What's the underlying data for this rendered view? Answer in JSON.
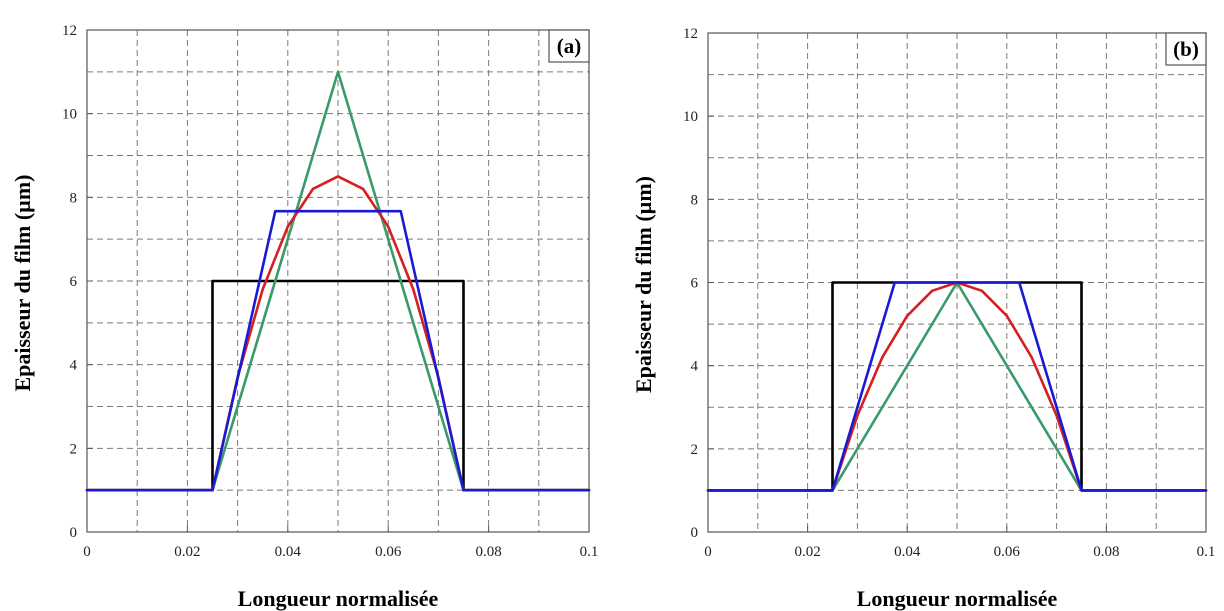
{
  "chart_data": [
    {
      "type": "line",
      "panel_label": "(a)",
      "xlabel": "Longueur normalisée",
      "ylabel": "Epaisseur du film (µm)",
      "xlim": [
        0,
        0.1
      ],
      "ylim": [
        0,
        12
      ],
      "xticks": [
        "0",
        "0.02",
        "0.04",
        "0.06",
        "0.08",
        "0.1"
      ],
      "yticks": [
        "0",
        "2",
        "4",
        "6",
        "8",
        "10",
        "12"
      ],
      "grid": true,
      "series": [
        {
          "color": "#000000",
          "x": [
            0,
            0.025,
            0.025,
            0.075,
            0.075,
            0.1
          ],
          "y": [
            1,
            1,
            6,
            6,
            1,
            1
          ]
        },
        {
          "color": "#3a9a6a",
          "x": [
            0,
            0.025,
            0.05,
            0.075,
            0.1
          ],
          "y": [
            1,
            1,
            11,
            1,
            1
          ]
        },
        {
          "color": "#d42020",
          "x": [
            0,
            0.025,
            0.03,
            0.035,
            0.04,
            0.045,
            0.05,
            0.055,
            0.06,
            0.065,
            0.07,
            0.075,
            0.1
          ],
          "y": [
            1,
            1,
            3.7,
            5.8,
            7.3,
            8.2,
            8.5,
            8.2,
            7.3,
            5.8,
            3.7,
            1,
            1
          ]
        },
        {
          "color": "#1a1ad6",
          "x": [
            0,
            0.025,
            0.0375,
            0.0625,
            0.075,
            0.1
          ],
          "y": [
            1,
            1,
            7.67,
            7.67,
            1,
            1
          ]
        }
      ]
    },
    {
      "type": "line",
      "panel_label": "(b)",
      "xlabel": "Longueur normalisée",
      "ylabel": "Epaisseur du film (µm)",
      "xlim": [
        0,
        0.1
      ],
      "ylim": [
        0,
        12
      ],
      "xticks": [
        "0",
        "0.02",
        "0.04",
        "0.06",
        "0.08",
        "0.1"
      ],
      "yticks": [
        "0",
        "2",
        "4",
        "6",
        "8",
        "10",
        "12"
      ],
      "grid": true,
      "series": [
        {
          "color": "#000000",
          "x": [
            0,
            0.025,
            0.025,
            0.075,
            0.075,
            0.1
          ],
          "y": [
            1,
            1,
            6,
            6,
            1,
            1
          ]
        },
        {
          "color": "#3a9a6a",
          "x": [
            0,
            0.025,
            0.05,
            0.075,
            0.1
          ],
          "y": [
            1,
            1,
            6,
            1,
            1
          ]
        },
        {
          "color": "#d42020",
          "x": [
            0,
            0.025,
            0.03,
            0.035,
            0.04,
            0.045,
            0.05,
            0.055,
            0.06,
            0.065,
            0.07,
            0.075,
            0.1
          ],
          "y": [
            1,
            1,
            2.8,
            4.2,
            5.2,
            5.8,
            6,
            5.8,
            5.2,
            4.2,
            2.8,
            1,
            1
          ]
        },
        {
          "color": "#1a1ad6",
          "x": [
            0,
            0.025,
            0.0375,
            0.0625,
            0.075,
            0.1
          ],
          "y": [
            1,
            1,
            6,
            6,
            1,
            1
          ]
        }
      ]
    }
  ]
}
